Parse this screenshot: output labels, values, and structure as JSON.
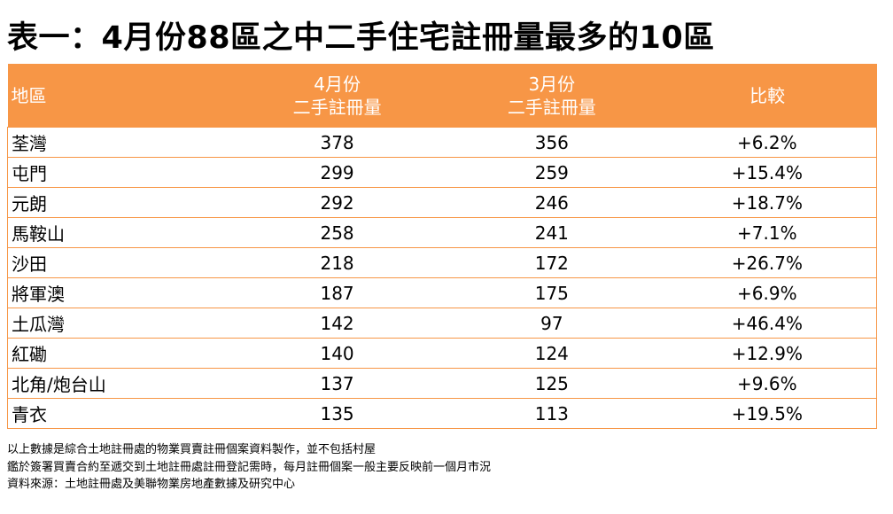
{
  "header": {
    "title": "表一：4月份88區之中二手住宅註冊量最多的10區"
  },
  "table": {
    "columns": [
      [
        "地區"
      ],
      [
        "4月份",
        "二手註冊量"
      ],
      [
        "3月份",
        "二手註冊量"
      ],
      [
        "比較"
      ]
    ],
    "rows": [
      [
        "荃灣",
        378,
        356,
        "+6.2%"
      ],
      [
        "屯門",
        299,
        259,
        "+15.4%"
      ],
      [
        "元朗",
        292,
        246,
        "+18.7%"
      ],
      [
        "馬鞍山",
        258,
        241,
        "+7.1%"
      ],
      [
        "沙田",
        218,
        172,
        "+26.7%"
      ],
      [
        "將軍澳",
        187,
        175,
        "+6.9%"
      ],
      [
        "土瓜灣",
        142,
        97,
        "+46.4%"
      ],
      [
        "紅磡",
        140,
        124,
        "+12.9%"
      ],
      [
        "北角/炮台山",
        137,
        125,
        "+9.6%"
      ],
      [
        "青衣",
        135,
        113,
        "+19.5%"
      ]
    ]
  },
  "notes": [
    "以上數據是綜合土地註冊處的物業買賣註冊個案資料製作，並不包括村屋",
    "鑑於簽署買賣合約至遞交到土地註冊處註冊登記需時，每月註冊個案一般主要反映前一個月市況",
    "資料來源：土地註冊處及美聯物業房地產數據及研究中心"
  ]
}
